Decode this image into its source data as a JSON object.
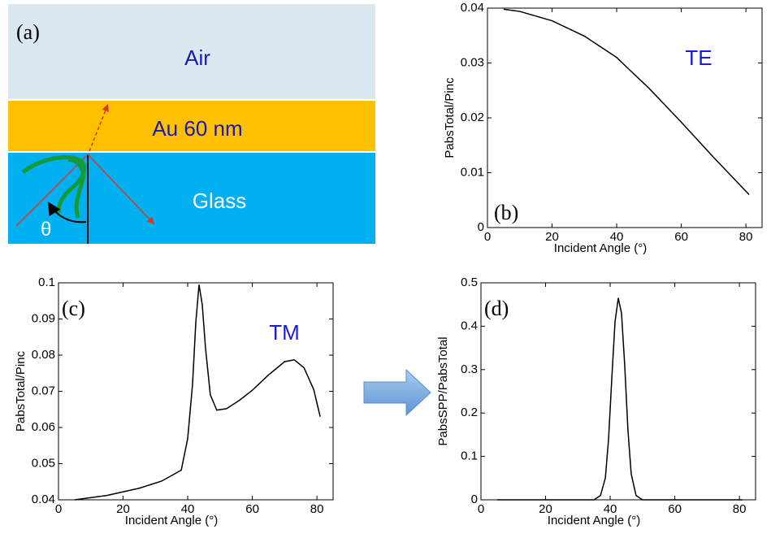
{
  "diagram": {
    "panel_label": "(a)",
    "layers": [
      "Air",
      "Au 60 nm",
      "Glass"
    ],
    "angle_label": "θ"
  },
  "chart_data": [
    {
      "type": "line",
      "panel_label": "(b)",
      "annotation": "TE",
      "xlabel": "Incident Angle (°)",
      "ylabel": "PabsTotal/Pinc",
      "x": [
        5,
        10,
        20,
        30,
        40,
        43,
        50,
        60,
        70,
        81
      ],
      "values": [
        0.0398,
        0.0394,
        0.0377,
        0.0349,
        0.031,
        0.0293,
        0.0254,
        0.0192,
        0.0128,
        0.006
      ],
      "color": "#000000",
      "xlim": [
        0,
        85
      ],
      "ylim": [
        0,
        0.04
      ],
      "xticks": [
        0,
        20,
        40,
        60,
        80
      ],
      "yticks": [
        0,
        0.01,
        0.02,
        0.03,
        0.04
      ]
    },
    {
      "type": "line",
      "panel_label": "(c)",
      "annotation": "TM",
      "xlabel": "Incident Angle (°)",
      "ylabel": "PabsTotal/Pinc",
      "x": [
        5,
        15,
        25,
        32,
        38,
        40,
        41.5,
        42.5,
        43.5,
        44.5,
        45.5,
        47,
        49,
        52,
        56,
        60,
        65,
        70,
        73,
        76,
        79,
        81
      ],
      "values": [
        0.04,
        0.0412,
        0.0432,
        0.0452,
        0.0482,
        0.057,
        0.072,
        0.089,
        0.0995,
        0.094,
        0.082,
        0.069,
        0.0648,
        0.0652,
        0.0675,
        0.0703,
        0.0745,
        0.0782,
        0.0787,
        0.0765,
        0.0705,
        0.063
      ],
      "color": "#000000",
      "xlim": [
        0,
        85
      ],
      "ylim": [
        0.04,
        0.1
      ],
      "xticks": [
        0,
        20,
        40,
        60,
        80
      ],
      "yticks": [
        0.04,
        0.05,
        0.06,
        0.07,
        0.08,
        0.09,
        0.1
      ]
    },
    {
      "type": "line",
      "panel_label": "(d)",
      "xlabel": "Incident Angle (°)",
      "ylabel": "PabsSPP/PabsTotal",
      "x": [
        5,
        35,
        37,
        38.5,
        39.5,
        40.5,
        41.5,
        42.5,
        43.5,
        44.5,
        45.5,
        46.5,
        48,
        50,
        81
      ],
      "values": [
        0,
        0,
        0.01,
        0.05,
        0.14,
        0.28,
        0.41,
        0.465,
        0.43,
        0.31,
        0.16,
        0.06,
        0.01,
        0,
        0
      ],
      "color": "#000000",
      "xlim": [
        0,
        85
      ],
      "ylim": [
        0,
        0.5
      ],
      "xticks": [
        0,
        20,
        40,
        60,
        80
      ],
      "yticks": [
        0,
        0.1,
        0.2,
        0.3,
        0.4,
        0.5
      ]
    }
  ]
}
